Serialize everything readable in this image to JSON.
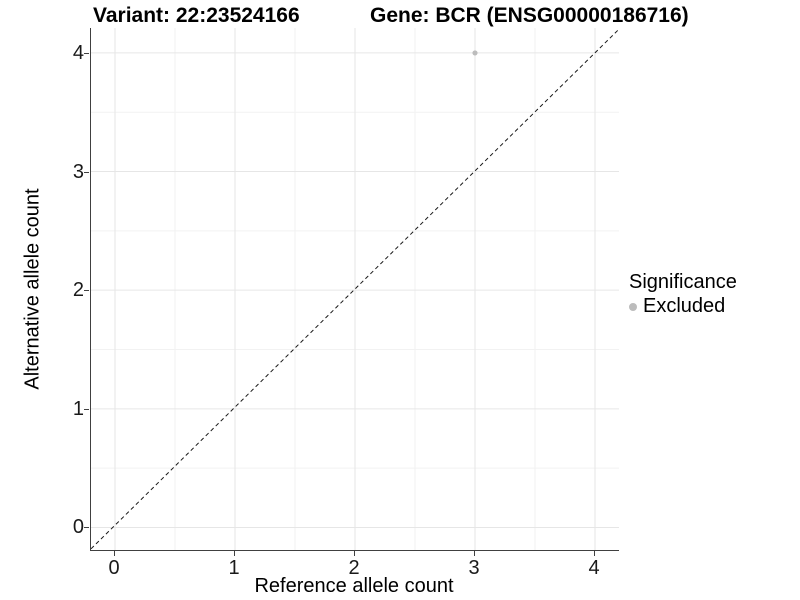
{
  "figure": {
    "title_left": "Variant: 22:23524166",
    "title_right": "Gene: BCR (ENSG00000186716)"
  },
  "legend": {
    "title": "Significance",
    "items": [
      {
        "label": "Excluded",
        "color": "#bcbcbc"
      }
    ]
  },
  "chart_data": {
    "type": "scatter",
    "title": "Variant: 22:23524166 / Gene: BCR (ENSG00000186716)",
    "xlabel": "Reference allele count",
    "ylabel": "Alternative allele count",
    "x_ticks": [
      0,
      1,
      2,
      3,
      4
    ],
    "y_ticks": [
      0,
      1,
      2,
      3,
      4
    ],
    "xlim": [
      -0.2,
      4.2
    ],
    "ylim": [
      -0.19,
      4.21
    ],
    "grid": "major and minor gridlines",
    "minor_step": 0.5,
    "legend_position": "right",
    "series": [
      {
        "name": "Excluded",
        "color": "#bcbcbc",
        "points": [
          {
            "x": 3,
            "y": 4
          }
        ]
      }
    ],
    "reference_line": {
      "type": "identity y=x",
      "style": "dashed",
      "color": "#1a1a1a"
    },
    "colors": {
      "grid_major": "#e6e6e6",
      "grid_minor": "#f2f2f2",
      "axis_line": "#404040",
      "point": "#bcbcbc"
    }
  }
}
